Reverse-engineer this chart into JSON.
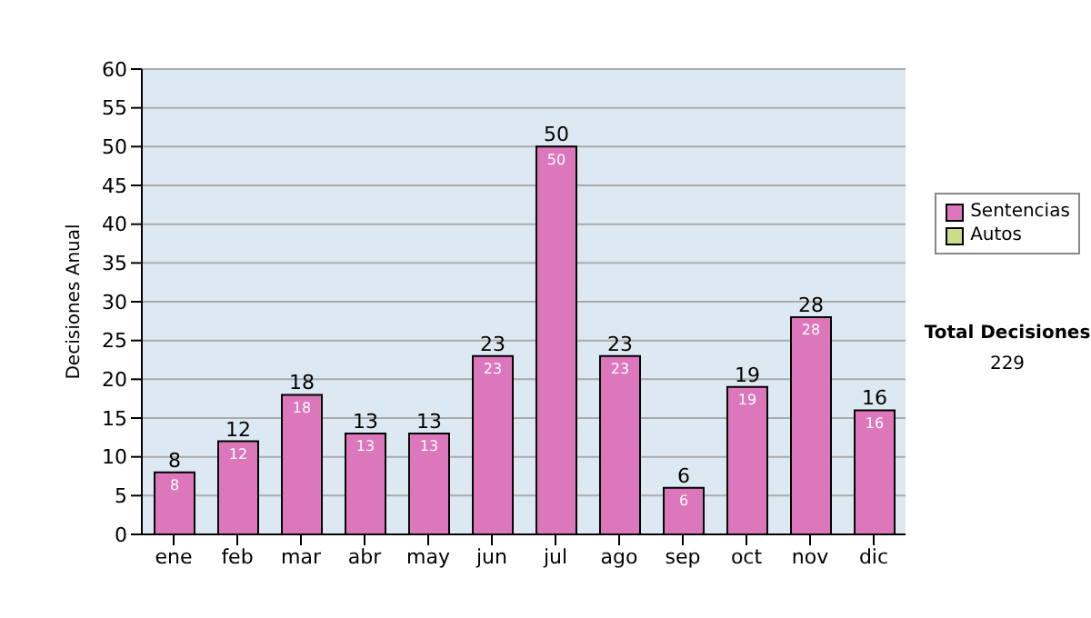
{
  "chart_data": {
    "type": "bar",
    "stacked": true,
    "ylabel": "Decisiones Anual",
    "categories": [
      "ene",
      "feb",
      "mar",
      "abr",
      "may",
      "jun",
      "jul",
      "ago",
      "sep",
      "oct",
      "nov",
      "dic"
    ],
    "series": [
      {
        "name": "Sentencias",
        "color": "#dd77bb",
        "values": [
          8,
          12,
          18,
          13,
          13,
          23,
          50,
          23,
          6,
          19,
          28,
          16
        ],
        "value_labels": [
          "8",
          "12",
          "18",
          "13",
          "13",
          "23",
          "50",
          "23",
          "6",
          "19",
          "28",
          "16"
        ]
      },
      {
        "name": "Autos",
        "color": "#ccdd88",
        "values": [
          0,
          0,
          0,
          0,
          0,
          0,
          0,
          0,
          0,
          0,
          0,
          0
        ],
        "value_labels": [
          null,
          null,
          null,
          null,
          null,
          null,
          null,
          null,
          null,
          null,
          null,
          null
        ]
      }
    ],
    "ylim": [
      0,
      60
    ],
    "yticks": [
      0,
      5,
      10,
      15,
      20,
      25,
      30,
      35,
      40,
      45,
      50,
      55,
      60
    ],
    "grid": "y",
    "legend": "right",
    "totals": [
      "8",
      "12",
      "18",
      "13",
      "13",
      "23",
      "50",
      "23",
      "6",
      "19",
      "28",
      "16"
    ],
    "annotations": [
      "Total Decisiones",
      "229"
    ]
  }
}
